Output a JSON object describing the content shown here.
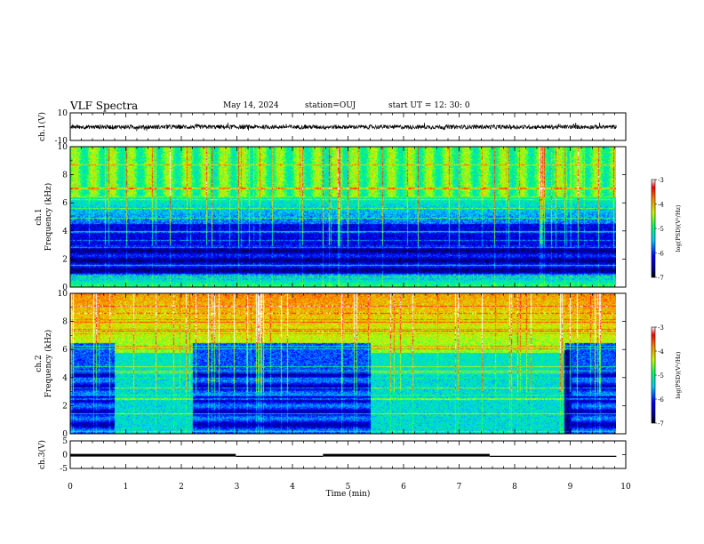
{
  "header": {
    "title": "VLF Spectra",
    "date": "May 14, 2024",
    "station": "station=OUJ",
    "start_ut": "start  UT  =   12: 30: 0"
  },
  "chart_data": [
    {
      "type": "line",
      "panel": "ch1-waveform",
      "ylabel": "ch.1(V)",
      "ylim": [
        -10,
        10
      ],
      "yticks": [
        "10",
        "-10"
      ],
      "xlim": [
        0,
        10
      ],
      "description_values": {
        "baseline": -0.2,
        "noise_amplitude": 3,
        "x_end": 9.83
      }
    },
    {
      "type": "heatmap",
      "panel": "ch1-spectrogram",
      "ylabel": "ch.1\nFrequency (kHz)",
      "ylim": [
        0,
        10
      ],
      "yticks": [
        "0",
        "2",
        "4",
        "6",
        "8",
        "10"
      ],
      "xlim": [
        0,
        10
      ],
      "colorbar": {
        "label": "log(PSD)(V²/Hz)",
        "range": [
          -7,
          -3
        ],
        "ticks": [
          "-3",
          "-4",
          "-5",
          "-6",
          "-7"
        ]
      },
      "description_values": {
        "x_end": 9.83
      }
    },
    {
      "type": "heatmap",
      "panel": "ch2-spectrogram",
      "ylabel": "ch.2\nFrequency (kHz)",
      "ylim": [
        0,
        10
      ],
      "yticks": [
        "0",
        "2",
        "4",
        "6",
        "8",
        "10"
      ],
      "xlim": [
        0,
        10
      ],
      "colorbar": {
        "label": "log(PSD)(V²/Hz)",
        "range": [
          -7,
          -3
        ],
        "ticks": [
          "-3",
          "-4",
          "-5",
          "-6",
          "-7"
        ]
      },
      "description_values": {
        "x_end": 9.83,
        "quiet_intervals_min": [
          [
            0.8,
            2.2
          ],
          [
            5.4,
            8.9
          ]
        ]
      }
    },
    {
      "type": "line",
      "panel": "ch3-level",
      "ylabel": "ch.3(V)",
      "ylim": [
        -5,
        5
      ],
      "yticks": [
        "5",
        "0",
        "-5"
      ],
      "xlim": [
        0,
        10
      ],
      "xticks": [
        "0",
        "1",
        "2",
        "3",
        "4",
        "5",
        "6",
        "7",
        "8",
        "9",
        "10"
      ],
      "xlabel": "Time (min)",
      "segments": [
        {
          "x": [
            0,
            2.98
          ],
          "y": -0.2
        },
        {
          "x": [
            2.98,
            4.55
          ],
          "y": -0.6
        },
        {
          "x": [
            4.55,
            7.55
          ],
          "y": -0.2
        },
        {
          "x": [
            7.55,
            9.83
          ],
          "y": -0.6
        }
      ]
    }
  ]
}
